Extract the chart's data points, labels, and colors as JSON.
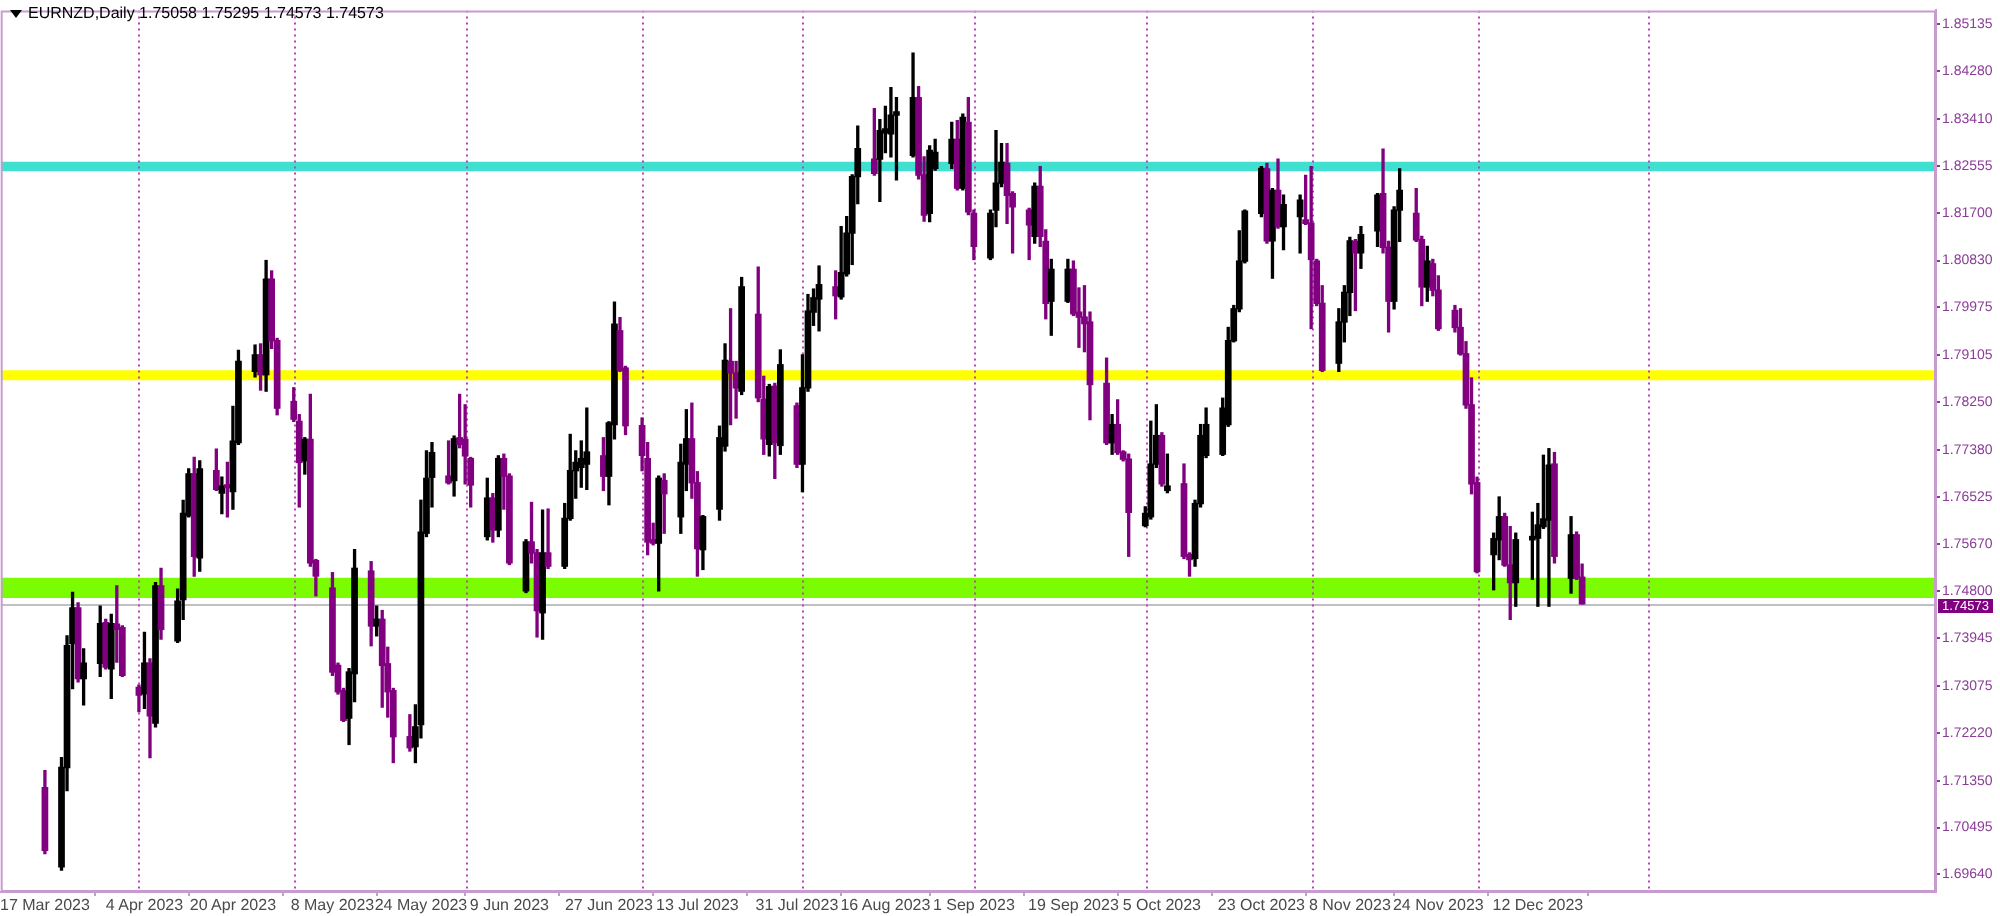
{
  "chart_data": {
    "type": "candlestick",
    "title": "EURNZD,Daily 1.75058 1.75295 1.74573 1.74573",
    "x": [
      "2023-03-17",
      "2023-03-20",
      "2023-03-21",
      "2023-03-22",
      "2023-03-23",
      "2023-03-24",
      "2023-03-27",
      "2023-03-28",
      "2023-03-29",
      "2023-03-30",
      "2023-03-31",
      "2023-04-03",
      "2023-04-04",
      "2023-04-05",
      "2023-04-06",
      "2023-04-07",
      "2023-04-10",
      "2023-04-11",
      "2023-04-12",
      "2023-04-13",
      "2023-04-14",
      "2023-04-17",
      "2023-04-18",
      "2023-04-19",
      "2023-04-20",
      "2023-04-21",
      "2023-04-24",
      "2023-04-25",
      "2023-04-26",
      "2023-04-27",
      "2023-04-28",
      "2023-05-01",
      "2023-05-02",
      "2023-05-03",
      "2023-05-04",
      "2023-05-05",
      "2023-05-08",
      "2023-05-09",
      "2023-05-10",
      "2023-05-11",
      "2023-05-12",
      "2023-05-15",
      "2023-05-16",
      "2023-05-17",
      "2023-05-18",
      "2023-05-19",
      "2023-05-22",
      "2023-05-23",
      "2023-05-24",
      "2023-05-25",
      "2023-05-26",
      "2023-05-29",
      "2023-05-30",
      "2023-05-31",
      "2023-06-01",
      "2023-06-02",
      "2023-06-05",
      "2023-06-06",
      "2023-06-07",
      "2023-06-08",
      "2023-06-09",
      "2023-06-12",
      "2023-06-13",
      "2023-06-14",
      "2023-06-15",
      "2023-06-16",
      "2023-06-19",
      "2023-06-20",
      "2023-06-21",
      "2023-06-22",
      "2023-06-23",
      "2023-06-26",
      "2023-06-27",
      "2023-06-28",
      "2023-06-29",
      "2023-06-30",
      "2023-07-03",
      "2023-07-04",
      "2023-07-05",
      "2023-07-06",
      "2023-07-07",
      "2023-07-10",
      "2023-07-11",
      "2023-07-12",
      "2023-07-13",
      "2023-07-14",
      "2023-07-17",
      "2023-07-18",
      "2023-07-19",
      "2023-07-20",
      "2023-07-21",
      "2023-07-24",
      "2023-07-25",
      "2023-07-26",
      "2023-07-27",
      "2023-07-28",
      "2023-07-31",
      "2023-08-01",
      "2023-08-02",
      "2023-08-03",
      "2023-08-04",
      "2023-08-07",
      "2023-08-08",
      "2023-08-09",
      "2023-08-10",
      "2023-08-11",
      "2023-08-14",
      "2023-08-15",
      "2023-08-16",
      "2023-08-17",
      "2023-08-18",
      "2023-08-21",
      "2023-08-22",
      "2023-08-23",
      "2023-08-24",
      "2023-08-25",
      "2023-08-28",
      "2023-08-29",
      "2023-08-30",
      "2023-08-31",
      "2023-09-01",
      "2023-09-04",
      "2023-09-05",
      "2023-09-06",
      "2023-09-07",
      "2023-09-08",
      "2023-09-11",
      "2023-09-12",
      "2023-09-13",
      "2023-09-14",
      "2023-09-15",
      "2023-09-18",
      "2023-09-19",
      "2023-09-20",
      "2023-09-21",
      "2023-09-22",
      "2023-09-25",
      "2023-09-26",
      "2023-09-27",
      "2023-09-28",
      "2023-09-29",
      "2023-10-02",
      "2023-10-03",
      "2023-10-04",
      "2023-10-05",
      "2023-10-06",
      "2023-10-09",
      "2023-10-10",
      "2023-10-11",
      "2023-10-12",
      "2023-10-13",
      "2023-10-16",
      "2023-10-17",
      "2023-10-18",
      "2023-10-19",
      "2023-10-20",
      "2023-10-23",
      "2023-10-24",
      "2023-10-25",
      "2023-10-26",
      "2023-10-27",
      "2023-10-30",
      "2023-10-31",
      "2023-11-01",
      "2023-11-02",
      "2023-11-03",
      "2023-11-06",
      "2023-11-07",
      "2023-11-08",
      "2023-11-09",
      "2023-11-10",
      "2023-11-13",
      "2023-11-14",
      "2023-11-15",
      "2023-11-16",
      "2023-11-17",
      "2023-11-20",
      "2023-11-21",
      "2023-11-22",
      "2023-11-23",
      "2023-11-24",
      "2023-11-27",
      "2023-11-28",
      "2023-11-29",
      "2023-11-30",
      "2023-12-01",
      "2023-12-04",
      "2023-12-05",
      "2023-12-06",
      "2023-12-07",
      "2023-12-08",
      "2023-12-11",
      "2023-12-12",
      "2023-12-13",
      "2023-12-14",
      "2023-12-15",
      "2023-12-18",
      "2023-12-19",
      "2023-12-20"
    ],
    "ohlc": [
      [
        1.7122,
        1.7153,
        1.7002,
        1.7008
      ],
      [
        1.6978,
        1.7177,
        1.6972,
        1.7159
      ],
      [
        1.7159,
        1.7399,
        1.7117,
        1.7381
      ],
      [
        1.7385,
        1.7478,
        1.7303,
        1.745
      ],
      [
        1.745,
        1.7459,
        1.7315,
        1.7321
      ],
      [
        1.7321,
        1.7375,
        1.7273,
        1.7349
      ],
      [
        1.7349,
        1.7453,
        1.7325,
        1.7421
      ],
      [
        1.7423,
        1.7429,
        1.7339,
        1.7342
      ],
      [
        1.7339,
        1.7438,
        1.7285,
        1.7421
      ],
      [
        1.742,
        1.749,
        1.7351,
        1.7411
      ],
      [
        1.7414,
        1.7417,
        1.7325,
        1.7327
      ],
      [
        1.7305,
        1.7309,
        1.7261,
        1.7291
      ],
      [
        1.7293,
        1.7405,
        1.7267,
        1.7349
      ],
      [
        1.7349,
        1.7357,
        1.7177,
        1.7253
      ],
      [
        1.724,
        1.7496,
        1.7233,
        1.749
      ],
      [
        1.749,
        1.7522,
        1.7393,
        1.7411
      ],
      [
        1.739,
        1.7484,
        1.7387,
        1.7462
      ],
      [
        1.7465,
        1.7646,
        1.7429,
        1.7622
      ],
      [
        1.7618,
        1.7703,
        1.7616,
        1.7694
      ],
      [
        1.7694,
        1.7724,
        1.7508,
        1.7544
      ],
      [
        1.7541,
        1.7718,
        1.7517,
        1.7703
      ],
      [
        1.77,
        1.7739,
        1.7664,
        1.7666
      ],
      [
        1.7659,
        1.7688,
        1.7622,
        1.7672
      ],
      [
        1.7674,
        1.7715,
        1.7616,
        1.7669
      ],
      [
        1.7662,
        1.7817,
        1.763,
        1.7754
      ],
      [
        1.7751,
        1.7919,
        1.7748,
        1.7899
      ],
      [
        1.7881,
        1.7929,
        1.7871,
        1.7911
      ],
      [
        1.7911,
        1.7931,
        1.7847,
        1.7875
      ],
      [
        1.7875,
        1.8083,
        1.7845,
        1.8049
      ],
      [
        1.8049,
        1.8064,
        1.7923,
        1.7937
      ],
      [
        1.7937,
        1.7941,
        1.7802,
        1.7814
      ],
      [
        1.7826,
        1.7851,
        1.779,
        1.7794
      ],
      [
        1.779,
        1.7802,
        1.7634,
        1.7715
      ],
      [
        1.7718,
        1.776,
        1.7694,
        1.7757
      ],
      [
        1.7757,
        1.7839,
        1.7526,
        1.7532
      ],
      [
        1.7536,
        1.7538,
        1.7472,
        1.7508
      ],
      [
        1.7486,
        1.7514,
        1.7327,
        1.7333
      ],
      [
        1.7345,
        1.7349,
        1.7293,
        1.7297
      ],
      [
        1.7299,
        1.7303,
        1.7243,
        1.7245
      ],
      [
        1.7249,
        1.7339,
        1.7201,
        1.7333
      ],
      [
        1.733,
        1.7556,
        1.7279,
        1.7522
      ],
      [
        1.7517,
        1.7534,
        1.7381,
        1.7417
      ],
      [
        1.7417,
        1.7453,
        1.7399,
        1.7429
      ],
      [
        1.7429,
        1.7445,
        1.7269,
        1.7345
      ],
      [
        1.7348,
        1.7378,
        1.7251,
        1.7297
      ],
      [
        1.7299,
        1.7303,
        1.7168,
        1.7215
      ],
      [
        1.7215,
        1.7255,
        1.7189,
        1.7195
      ],
      [
        1.7197,
        1.7273,
        1.7168,
        1.7233
      ],
      [
        1.7237,
        1.7646,
        1.7213,
        1.7588
      ],
      [
        1.7586,
        1.7736,
        1.758,
        1.7686
      ],
      [
        1.7688,
        1.7751,
        1.7634,
        1.7733
      ],
      [
        1.769,
        1.7754,
        1.7676,
        1.7678
      ],
      [
        1.7682,
        1.7763,
        1.7654,
        1.7758
      ],
      [
        1.776,
        1.7839,
        1.7742,
        1.7748
      ],
      [
        1.7757,
        1.782,
        1.7676,
        1.7727
      ],
      [
        1.7722,
        1.7724,
        1.7634,
        1.7674
      ],
      [
        1.758,
        1.7686,
        1.7574,
        1.765
      ],
      [
        1.765,
        1.7658,
        1.757,
        1.7592
      ],
      [
        1.7592,
        1.7727,
        1.758,
        1.7722
      ],
      [
        1.7722,
        1.773,
        1.763,
        1.769
      ],
      [
        1.769,
        1.7694,
        1.7529,
        1.7532
      ],
      [
        1.7481,
        1.7574,
        1.7478,
        1.757
      ],
      [
        1.757,
        1.7642,
        1.7532,
        1.755
      ],
      [
        1.755,
        1.7556,
        1.7397,
        1.7445
      ],
      [
        1.7441,
        1.7628,
        1.7393,
        1.755
      ],
      [
        1.755,
        1.763,
        1.7522,
        1.7526
      ],
      [
        1.7526,
        1.764,
        1.7522,
        1.7613
      ],
      [
        1.7613,
        1.7766,
        1.761,
        1.77
      ],
      [
        1.77,
        1.7736,
        1.765,
        1.7715
      ],
      [
        1.7706,
        1.7754,
        1.767,
        1.7722
      ],
      [
        1.7712,
        1.7814,
        1.7666,
        1.7734
      ],
      [
        1.7727,
        1.776,
        1.7664,
        1.769
      ],
      [
        1.769,
        1.7789,
        1.7638,
        1.7787
      ],
      [
        1.7784,
        1.8007,
        1.7758,
        1.7967
      ],
      [
        1.7955,
        1.7979,
        1.7881,
        1.7883
      ],
      [
        1.7887,
        1.789,
        1.7766,
        1.7782
      ],
      [
        1.7782,
        1.7796,
        1.77,
        1.7728
      ],
      [
        1.7722,
        1.7751,
        1.7547,
        1.757
      ],
      [
        1.7574,
        1.7604,
        1.7565,
        1.7568
      ],
      [
        1.7568,
        1.769,
        1.7481,
        1.7686
      ],
      [
        1.7682,
        1.7694,
        1.7586,
        1.7658
      ],
      [
        1.7616,
        1.7748,
        1.7586,
        1.7715
      ],
      [
        1.7712,
        1.7811,
        1.7664,
        1.7758
      ],
      [
        1.7758,
        1.7823,
        1.765,
        1.7678
      ],
      [
        1.7678,
        1.7698,
        1.7508,
        1.7558
      ],
      [
        1.7556,
        1.7618,
        1.752,
        1.7616
      ],
      [
        1.763,
        1.7781,
        1.761,
        1.776
      ],
      [
        1.7745,
        1.7931,
        1.7736,
        1.7901
      ],
      [
        1.7899,
        1.7995,
        1.7784,
        1.7878
      ],
      [
        1.7878,
        1.7899,
        1.7796,
        1.7851
      ],
      [
        1.7845,
        1.8052,
        1.7839,
        1.8035
      ],
      [
        1.7985,
        1.8071,
        1.7826,
        1.7833
      ],
      [
        1.783,
        1.7872,
        1.773,
        1.7758
      ],
      [
        1.7748,
        1.7857,
        1.7727,
        1.7853
      ],
      [
        1.7854,
        1.7859,
        1.7686,
        1.7751
      ],
      [
        1.7746,
        1.792,
        1.773,
        1.7893
      ],
      [
        1.7818,
        1.7823,
        1.7706,
        1.7712
      ],
      [
        1.7712,
        1.7911,
        1.7662,
        1.7851
      ],
      [
        1.7851,
        1.8021,
        1.7845,
        1.7991
      ],
      [
        1.7989,
        1.8031,
        1.7965,
        1.8015
      ],
      [
        1.8013,
        1.8073,
        1.7955,
        1.8039
      ],
      [
        1.8035,
        1.8064,
        1.7977,
        1.8019
      ],
      [
        1.8017,
        1.8145,
        1.8013,
        1.8061
      ],
      [
        1.8059,
        1.8163,
        1.8055,
        1.8133
      ],
      [
        1.8133,
        1.8239,
        1.8076,
        1.8236
      ],
      [
        1.8236,
        1.8328,
        1.8187,
        1.8287
      ],
      [
        1.8268,
        1.836,
        1.8239,
        1.8242
      ],
      [
        1.8268,
        1.834,
        1.8191,
        1.832
      ],
      [
        1.8316,
        1.8364,
        1.828,
        1.8323
      ],
      [
        1.8314,
        1.8398,
        1.8272,
        1.8348
      ],
      [
        1.8348,
        1.838,
        1.823,
        1.8354
      ],
      [
        1.8275,
        1.8461,
        1.8272,
        1.838
      ],
      [
        1.838,
        1.84,
        1.8232,
        1.8239
      ],
      [
        1.8239,
        1.8272,
        1.8155,
        1.8166
      ],
      [
        1.8169,
        1.8292,
        1.8154,
        1.8284
      ],
      [
        1.8251,
        1.8304,
        1.8248,
        1.828
      ],
      [
        1.826,
        1.8335,
        1.8251,
        1.8304
      ],
      [
        1.8304,
        1.8338,
        1.8212,
        1.8215
      ],
      [
        1.8215,
        1.835,
        1.8212,
        1.8344
      ],
      [
        1.8335,
        1.838,
        1.8167,
        1.8172
      ],
      [
        1.8169,
        1.8175,
        1.8085,
        1.8109
      ],
      [
        1.8088,
        1.8175,
        1.8085,
        1.8169
      ],
      [
        1.8175,
        1.832,
        1.8145,
        1.8224
      ],
      [
        1.8224,
        1.8296,
        1.8218,
        1.8262
      ],
      [
        1.826,
        1.8296,
        1.8151,
        1.8202
      ],
      [
        1.8205,
        1.8208,
        1.8097,
        1.8181
      ],
      [
        1.8175,
        1.8178,
        1.8085,
        1.8148
      ],
      [
        1.8127,
        1.8224,
        1.8115,
        1.8218
      ],
      [
        1.8218,
        1.8254,
        1.8109,
        1.8127
      ],
      [
        1.8118,
        1.8139,
        1.7977,
        1.8005
      ],
      [
        1.8009,
        1.8085,
        1.7947,
        1.8067
      ],
      [
        1.8009,
        1.8085,
        1.8007,
        1.8067
      ],
      [
        1.8067,
        1.8082,
        1.7983,
        1.7986
      ],
      [
        1.7989,
        1.8033,
        1.7925,
        1.798
      ],
      [
        1.798,
        1.8037,
        1.7917,
        1.7968
      ],
      [
        1.7971,
        1.7989,
        1.7793,
        1.7857
      ],
      [
        1.7859,
        1.7905,
        1.7748,
        1.7751
      ],
      [
        1.7751,
        1.7802,
        1.773,
        1.7784
      ],
      [
        1.7784,
        1.7829,
        1.773,
        1.7733
      ],
      [
        1.7734,
        1.7736,
        1.7718,
        1.7721
      ],
      [
        1.7721,
        1.773,
        1.7544,
        1.7624
      ],
      [
        1.76,
        1.7634,
        1.7598,
        1.7622
      ],
      [
        1.7616,
        1.779,
        1.7612,
        1.7712
      ],
      [
        1.7712,
        1.782,
        1.7706,
        1.7764
      ],
      [
        1.7764,
        1.7769,
        1.7672,
        1.7676
      ],
      [
        1.7664,
        1.773,
        1.766,
        1.7672
      ],
      [
        1.7676,
        1.7712,
        1.754,
        1.7544
      ],
      [
        1.7547,
        1.755,
        1.7508,
        1.7538
      ],
      [
        1.754,
        1.7646,
        1.7526,
        1.764
      ],
      [
        1.764,
        1.7784,
        1.7634,
        1.7764
      ],
      [
        1.7728,
        1.7814,
        1.7724,
        1.7784
      ],
      [
        1.773,
        1.7832,
        1.7728,
        1.7814
      ],
      [
        1.7784,
        1.7961,
        1.7781,
        1.7937
      ],
      [
        1.7937,
        1.8001,
        1.7935,
        1.7995
      ],
      [
        1.7995,
        1.8137,
        1.799,
        1.8082
      ],
      [
        1.8082,
        1.8175,
        1.8079,
        1.8173
      ],
      [
        1.8169,
        1.8254,
        1.8163,
        1.8251
      ],
      [
        1.825,
        1.826,
        1.8115,
        1.8119
      ],
      [
        1.8119,
        1.8214,
        1.8051,
        1.8211
      ],
      [
        1.8211,
        1.8268,
        1.8142,
        1.8145
      ],
      [
        1.8145,
        1.8202,
        1.8103,
        1.8185
      ],
      [
        1.8163,
        1.8202,
        1.8097,
        1.8193
      ],
      [
        1.8157,
        1.8238,
        1.8149,
        1.8151
      ],
      [
        1.8151,
        1.8254,
        1.7959,
        1.8085
      ],
      [
        1.8082,
        1.8085,
        1.8001,
        1.8005
      ],
      [
        1.8005,
        1.8037,
        1.7881,
        1.7883
      ],
      [
        1.7896,
        1.7995,
        1.7881,
        1.7971
      ],
      [
        1.7971,
        1.8037,
        1.7935,
        1.8025
      ],
      [
        1.8025,
        1.8125,
        1.7983,
        1.8119
      ],
      [
        1.8118,
        1.8121,
        1.7992,
        1.8097
      ],
      [
        1.8097,
        1.8145,
        1.8069,
        1.813
      ],
      [
        1.8137,
        1.8205,
        1.8109,
        1.8202
      ],
      [
        1.8205,
        1.8286,
        1.8097,
        1.8107
      ],
      [
        1.8107,
        1.8118,
        1.7953,
        1.8009
      ],
      [
        1.8009,
        1.8181,
        1.7995,
        1.8175
      ],
      [
        1.8175,
        1.825,
        1.8118,
        1.8211
      ],
      [
        1.8169,
        1.8214,
        1.8118,
        1.8121
      ],
      [
        1.8121,
        1.8127,
        1.8001,
        1.8035
      ],
      [
        1.8035,
        1.8109,
        1.8009,
        1.8082
      ],
      [
        1.8077,
        1.8085,
        1.8019,
        1.8029
      ],
      [
        1.8029,
        1.8055,
        1.7956,
        1.7959
      ],
      [
        1.7992,
        1.8001,
        1.7953,
        1.7961
      ],
      [
        1.7961,
        1.7995,
        1.7911,
        1.7913
      ],
      [
        1.7913,
        1.7935,
        1.7814,
        1.782
      ],
      [
        1.782,
        1.7869,
        1.7658,
        1.7676
      ],
      [
        1.7678,
        1.7688,
        1.7514,
        1.7516
      ],
      [
        1.7547,
        1.7586,
        1.7483,
        1.7576
      ],
      [
        1.7574,
        1.7652,
        1.7538,
        1.7616
      ],
      [
        1.7616,
        1.7622,
        1.7526,
        1.7528
      ],
      [
        1.7528,
        1.7598,
        1.7429,
        1.7496
      ],
      [
        1.7496,
        1.7586,
        1.7453,
        1.7574
      ],
      [
        1.7574,
        1.7624,
        1.7502,
        1.758
      ],
      [
        1.7577,
        1.764,
        1.7453,
        1.7601
      ],
      [
        1.7598,
        1.7728,
        1.7595,
        1.7612
      ],
      [
        1.761,
        1.774,
        1.7453,
        1.771
      ],
      [
        1.7712,
        1.7733,
        1.7532,
        1.7544
      ],
      [
        1.7504,
        1.7616,
        1.7477,
        1.7583
      ],
      [
        1.7583,
        1.7588,
        1.7502,
        1.7504
      ],
      [
        1.75058,
        1.75295,
        1.74573,
        1.74573
      ]
    ],
    "colors": [
      "#800080",
      "#000000",
      "#000000",
      "#000000",
      "#800080",
      "#000000",
      "#000000",
      "#800080",
      "#000000",
      "#800080",
      "#800080",
      "#800080",
      "#000000",
      "#800080",
      "#000000",
      "#800080",
      "#000000",
      "#000000",
      "#000000",
      "#800080",
      "#000000",
      "#800080",
      "#000000",
      "#800080",
      "#000000",
      "#000000",
      "#000000",
      "#800080",
      "#000000",
      "#800080",
      "#800080",
      "#800080",
      "#800080",
      "#000000",
      "#800080",
      "#800080",
      "#800080",
      "#800080",
      "#800080",
      "#000000",
      "#000000",
      "#800080",
      "#000000",
      "#800080",
      "#800080",
      "#800080",
      "#800080",
      "#000000",
      "#000000",
      "#000000",
      "#000000",
      "#800080",
      "#000000",
      "#800080",
      "#800080",
      "#800080",
      "#000000",
      "#800080",
      "#000000",
      "#800080",
      "#800080",
      "#000000",
      "#800080",
      "#800080",
      "#000000",
      "#800080",
      "#000000",
      "#000000",
      "#000000",
      "#000000",
      "#000000",
      "#800080",
      "#000000",
      "#000000",
      "#800080",
      "#800080",
      "#800080",
      "#800080",
      "#800080",
      "#000000",
      "#800080",
      "#000000",
      "#000000",
      "#800080",
      "#800080",
      "#000000",
      "#000000",
      "#000000",
      "#800080",
      "#800080",
      "#000000",
      "#800080",
      "#800080",
      "#000000",
      "#800080",
      "#000000",
      "#800080",
      "#000000",
      "#000000",
      "#000000",
      "#000000",
      "#800080",
      "#000000",
      "#000000",
      "#000000",
      "#000000",
      "#800080",
      "#000000",
      "#000000",
      "#000000",
      "#000000",
      "#000000",
      "#800080",
      "#800080",
      "#000000",
      "#000000",
      "#000000",
      "#800080",
      "#000000",
      "#800080",
      "#800080",
      "#000000",
      "#000000",
      "#000000",
      "#800080",
      "#800080",
      "#800080",
      "#000000",
      "#800080",
      "#800080",
      "#000000",
      "#000000",
      "#800080",
      "#800080",
      "#800080",
      "#800080",
      "#800080",
      "#000000",
      "#800080",
      "#800080",
      "#800080",
      "#000000",
      "#000000",
      "#000000",
      "#800080",
      "#000000",
      "#800080",
      "#800080",
      "#000000",
      "#000000",
      "#000000",
      "#000000",
      "#000000",
      "#000000",
      "#000000",
      "#000000",
      "#000000",
      "#800080",
      "#000000",
      "#800080",
      "#000000",
      "#000000",
      "#800080",
      "#800080",
      "#800080",
      "#800080",
      "#000000",
      "#000000",
      "#000000",
      "#800080",
      "#000000",
      "#000000",
      "#800080",
      "#800080",
      "#000000",
      "#000000",
      "#800080",
      "#800080",
      "#000000",
      "#800080",
      "#800080",
      "#800080",
      "#800080",
      "#800080",
      "#800080",
      "#800080",
      "#000000",
      "#000000",
      "#800080",
      "#800080",
      "#000000",
      "#000000",
      "#000000",
      "#000000",
      "#000000",
      "#800080",
      "#000000",
      "#800080",
      "#800080"
    ],
    "xlim": [
      "2023-03-09",
      "2024-02-22"
    ],
    "xticks": [
      {
        "value": "2023-03-17",
        "label": "17 Mar 2023"
      },
      {
        "value": "2023-04-04",
        "label": "4 Apr 2023"
      },
      {
        "value": "2023-04-20",
        "label": "20 Apr 2023"
      },
      {
        "value": "2023-05-08",
        "label": "8 May 2023"
      },
      {
        "value": "2023-05-24",
        "label": "24 May 2023"
      },
      {
        "value": "2023-06-09",
        "label": "9 Jun 2023"
      },
      {
        "value": "2023-06-27",
        "label": "27 Jun 2023"
      },
      {
        "value": "2023-07-13",
        "label": "13 Jul 2023"
      },
      {
        "value": "2023-07-31",
        "label": "31 Jul 2023"
      },
      {
        "value": "2023-08-16",
        "label": "16 Aug 2023"
      },
      {
        "value": "2023-09-01",
        "label": "1 Sep 2023"
      },
      {
        "value": "2023-09-19",
        "label": "19 Sep 2023"
      },
      {
        "value": "2023-10-05",
        "label": "5 Oct 2023"
      },
      {
        "value": "2023-10-23",
        "label": "23 Oct 2023"
      },
      {
        "value": "2023-11-08",
        "label": "8 Nov 2023"
      },
      {
        "value": "2023-11-24",
        "label": "24 Nov 2023"
      },
      {
        "value": "2023-12-12",
        "label": "12 Dec 2023"
      }
    ],
    "ylim": [
      1.6932,
      1.8539
    ],
    "yticks": [
      1.85135,
      {
        "value": 1.8428,
        "label": "1.84280"
      },
      {
        "value": 1.8341,
        "label": "1.83410"
      },
      1.82555,
      {
        "value": 1.817,
        "label": "1.81700"
      },
      {
        "value": 1.8083,
        "label": "1.80830"
      },
      1.79975,
      1.79105,
      {
        "value": 1.7825,
        "label": "1.78250"
      },
      {
        "value": 1.7738,
        "label": "1.77380"
      },
      1.76525,
      {
        "value": 1.7567,
        "label": "1.75670"
      },
      {
        "value": 1.748,
        "label": "1.74800"
      },
      1.73945,
      1.73075,
      {
        "value": 1.7222,
        "label": "1.72220"
      },
      {
        "value": 1.7135,
        "label": "1.71350"
      },
      1.70495,
      {
        "value": 1.6964,
        "label": "1.69640"
      }
    ],
    "bands": [
      {
        "axis": "y",
        "from": 1.8246,
        "to": 1.8263,
        "color": "#40e0d0"
      },
      {
        "axis": "y",
        "from": 1.7865,
        "to": 1.7883,
        "color": "#ffff00"
      },
      {
        "axis": "y",
        "from": 1.7468,
        "to": 1.7505,
        "color": "#7cfc00"
      }
    ],
    "ref_lines": [
      {
        "axis": "y",
        "value": 1.74573,
        "label": "1.74573",
        "color": "#c0c0c0"
      },
      {
        "axis": "x",
        "value": "2023-04-03",
        "color": "#c040c0",
        "line_style": "dotted"
      },
      {
        "axis": "x",
        "value": "2023-05-01",
        "color": "#c040c0",
        "line_style": "dotted"
      },
      {
        "axis": "x",
        "value": "2023-06-01",
        "color": "#c040c0",
        "line_style": "dotted"
      },
      {
        "axis": "x",
        "value": "2023-07-03",
        "color": "#c040c0",
        "line_style": "dotted"
      },
      {
        "axis": "x",
        "value": "2023-08-01",
        "color": "#c040c0",
        "line_style": "dotted"
      },
      {
        "axis": "x",
        "value": "2023-09-01",
        "color": "#c040c0",
        "line_style": "dotted"
      },
      {
        "axis": "x",
        "value": "2023-10-02",
        "color": "#c040c0",
        "line_style": "dotted"
      },
      {
        "axis": "x",
        "value": "2023-11-01",
        "color": "#c040c0",
        "line_style": "dotted"
      },
      {
        "axis": "x",
        "value": "2023-12-01",
        "color": "#c040c0",
        "line_style": "dotted"
      },
      {
        "axis": "x",
        "value": "2024-01-01",
        "color": "#c040c0",
        "line_style": "dotted"
      }
    ]
  }
}
